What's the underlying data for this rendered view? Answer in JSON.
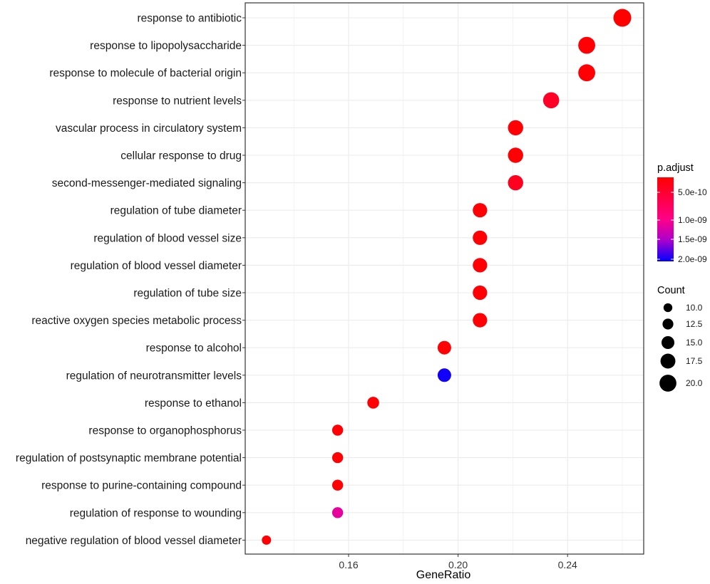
{
  "chart_data": {
    "type": "scatter",
    "title": "",
    "xlabel": "GeneRatio",
    "ylabel": "",
    "xlim": [
      0.13,
      0.275
    ],
    "x_ticks": [
      0.16,
      0.2,
      0.24
    ],
    "x_tick_labels": [
      "0.16",
      "0.20",
      "0.24"
    ],
    "grid": true,
    "categories": [
      "response to antibiotic",
      "response to lipopolysaccharide",
      "response to molecule of bacterial origin",
      "response to nutrient levels",
      "vascular process in circulatory system",
      "cellular response to drug",
      "second-messenger-mediated signaling",
      "regulation of tube diameter",
      "regulation of blood vessel size",
      "regulation of blood vessel diameter",
      "regulation of tube size",
      "reactive oxygen species metabolic process",
      "response to alcohol",
      "regulation of neurotransmitter levels",
      "response to ethanol",
      "response to organophosphorus",
      "regulation of postsynaptic membrane potential",
      "response to purine-containing compound",
      "regulation of response to wounding",
      "negative regulation of blood vessel diameter"
    ],
    "gene_ratio": [
      0.26,
      0.247,
      0.247,
      0.234,
      0.221,
      0.221,
      0.221,
      0.208,
      0.208,
      0.208,
      0.208,
      0.208,
      0.195,
      0.195,
      0.169,
      0.156,
      0.156,
      0.156,
      0.156,
      0.13
    ],
    "count": [
      20,
      19,
      19,
      18,
      17,
      17,
      17,
      16,
      16,
      16,
      16,
      16,
      15,
      15,
      13,
      12,
      12,
      12,
      12,
      10
    ],
    "p_adjust": [
      1e-11,
      5e-11,
      5e-11,
      3e-10,
      5e-11,
      5e-11,
      2.5e-10,
      5e-11,
      5e-11,
      5e-11,
      5e-11,
      5e-11,
      5e-11,
      2.05e-09,
      5e-11,
      5e-11,
      5e-11,
      5e-11,
      1.2e-09,
      5e-11
    ],
    "legend_placement": "right",
    "color_legend": {
      "title": "p.adjust",
      "range": [
        1e-11,
        2.1e-09
      ],
      "ticks": [
        5e-10,
        1e-09,
        1.5e-09,
        2e-09
      ],
      "tick_labels": [
        "5.0e-10",
        "1.0e-09",
        "1.5e-09",
        "2.0e-09"
      ],
      "colors": [
        "#ff0000",
        "#0000ff"
      ]
    },
    "size_legend": {
      "title": "Count",
      "values": [
        10,
        12.5,
        15,
        17.5,
        20
      ],
      "labels": [
        "10.0",
        "12.5",
        "15.0",
        "17.5",
        "20.0"
      ],
      "color": "#000000"
    },
    "panel_background": "#ffffff",
    "grid_color": "#ebebeb",
    "panel_border_color": "#333333"
  }
}
